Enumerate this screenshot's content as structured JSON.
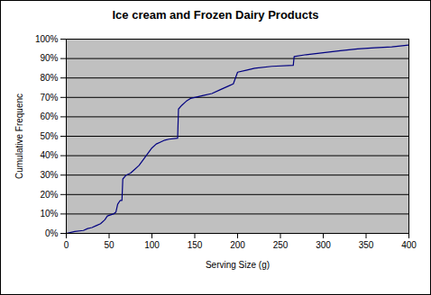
{
  "chart_data": {
    "type": "line",
    "title": "Ice cream and Frozen Dairy Products",
    "x_label": "Serving Size (g)",
    "y_label": "Cumulative Frequenc",
    "x": [
      0,
      10,
      20,
      25,
      30,
      35,
      40,
      45,
      48,
      55,
      58,
      60,
      63,
      65,
      66,
      70,
      75,
      80,
      85,
      90,
      95,
      100,
      105,
      110,
      115,
      120,
      130,
      131,
      135,
      140,
      145,
      150,
      160,
      170,
      180,
      190,
      195,
      200,
      210,
      220,
      240,
      265,
      266,
      280,
      300,
      320,
      340,
      360,
      380,
      400
    ],
    "series": [
      {
        "name": "Cumulative Frequenc",
        "color": "#000080",
        "values": [
          0,
          1,
          1.5,
          2.5,
          3,
          4,
          5,
          7,
          9,
          10,
          11,
          15,
          17,
          17,
          28,
          30,
          31,
          33,
          35,
          38,
          41,
          44,
          46,
          47,
          48,
          48.5,
          49,
          64,
          66,
          68,
          69.5,
          70,
          71,
          72,
          74,
          76,
          77,
          83,
          84,
          85,
          86,
          86.5,
          91,
          92,
          93,
          94,
          95,
          95.5,
          96,
          97
        ]
      }
    ],
    "xlim": [
      0,
      400
    ],
    "ylim": [
      0,
      100
    ],
    "xticks": [
      0,
      50,
      100,
      150,
      200,
      250,
      300,
      350,
      400
    ],
    "yticks": [
      {
        "value": 0,
        "label": "0%"
      },
      {
        "value": 10,
        "label": "10%"
      },
      {
        "value": 20,
        "label": "20%"
      },
      {
        "value": 30,
        "label": "30%"
      },
      {
        "value": 40,
        "label": "40%"
      },
      {
        "value": 50,
        "label": "50%"
      },
      {
        "value": 60,
        "label": "60%"
      },
      {
        "value": 70,
        "label": "70%"
      },
      {
        "value": 80,
        "label": "80%"
      },
      {
        "value": 90,
        "label": "90%"
      },
      {
        "value": 100,
        "label": "100%"
      }
    ],
    "grid": "y"
  }
}
